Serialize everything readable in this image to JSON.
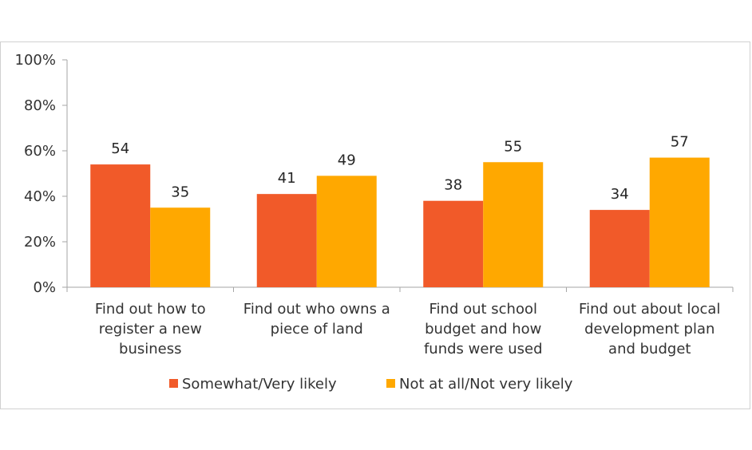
{
  "chart_data": {
    "type": "bar",
    "categories": [
      [
        "Find out how to",
        "register a new",
        "business"
      ],
      [
        "Find out who owns a",
        "piece of land"
      ],
      [
        "Find out school",
        "budget and how",
        "funds were used"
      ],
      [
        "Find out about local",
        "development plan",
        "and budget"
      ]
    ],
    "series": [
      {
        "name": "Somewhat/Very likely",
        "color": "#f15a29",
        "values": [
          54,
          41,
          38,
          34
        ]
      },
      {
        "name": "Not at all/Not very likely",
        "color": "#ffa800",
        "values": [
          35,
          49,
          55,
          57
        ]
      }
    ],
    "ylim": [
      0,
      100
    ],
    "yticks": [
      0,
      20,
      40,
      60,
      80,
      100
    ],
    "ytick_suffix": "%",
    "legend_position": "bottom",
    "grid": false
  }
}
